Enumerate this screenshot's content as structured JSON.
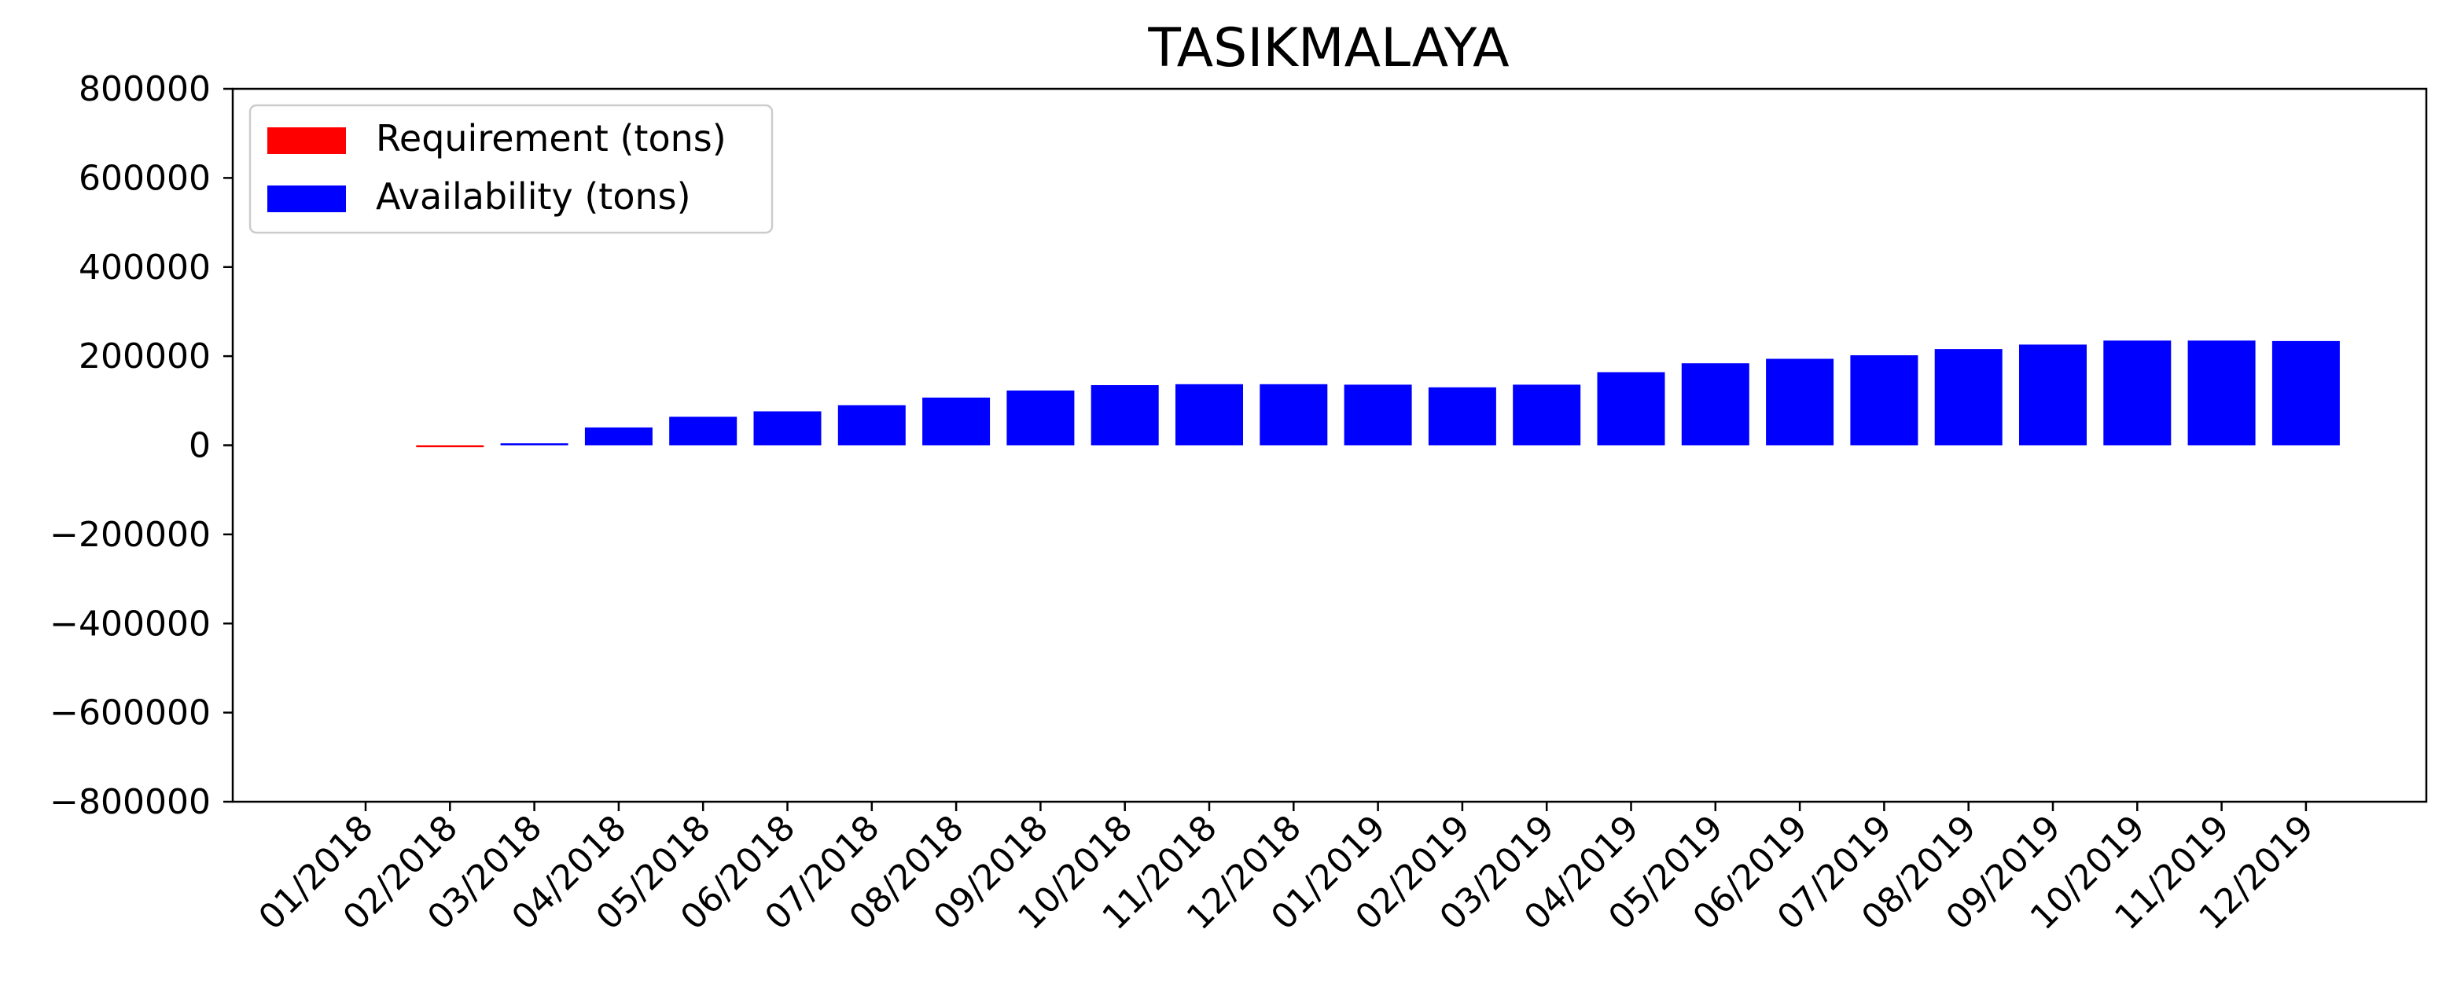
{
  "chart_data": {
    "type": "bar",
    "title": "TASIKMALAYA",
    "xlabel": "",
    "ylabel": "",
    "ylim": [
      -800000,
      800000
    ],
    "yticks": [
      -800000,
      -600000,
      -400000,
      -200000,
      0,
      200000,
      400000,
      600000,
      800000
    ],
    "ytick_labels": [
      "−800000",
      "−600000",
      "−400000",
      "−200000",
      "0",
      "200000",
      "400000",
      "600000",
      "800000"
    ],
    "categories": [
      "01/2018",
      "02/2018",
      "03/2018",
      "04/2018",
      "05/2018",
      "06/2018",
      "07/2018",
      "08/2018",
      "09/2018",
      "10/2018",
      "11/2018",
      "12/2018",
      "01/2019",
      "02/2019",
      "03/2019",
      "04/2019",
      "05/2019",
      "06/2019",
      "07/2019",
      "08/2019",
      "09/2019",
      "10/2019",
      "11/2019",
      "12/2019"
    ],
    "series": [
      {
        "name": "Requirement (tons)",
        "color": "#ff0000",
        "values": [
          0,
          -3000,
          0,
          0,
          0,
          0,
          0,
          0,
          0,
          0,
          0,
          0,
          0,
          0,
          0,
          0,
          0,
          0,
          0,
          0,
          0,
          0,
          0,
          0
        ]
      },
      {
        "name": "Availability (tons)",
        "color": "#0000ff",
        "values": [
          0,
          0,
          4000,
          40000,
          64000,
          76000,
          90000,
          107000,
          123000,
          135000,
          137000,
          137000,
          136000,
          130000,
          136000,
          164000,
          184000,
          194000,
          202000,
          216000,
          226000,
          235000,
          235000,
          234000
        ]
      }
    ],
    "grid": false,
    "legend_position": "upper-left"
  }
}
